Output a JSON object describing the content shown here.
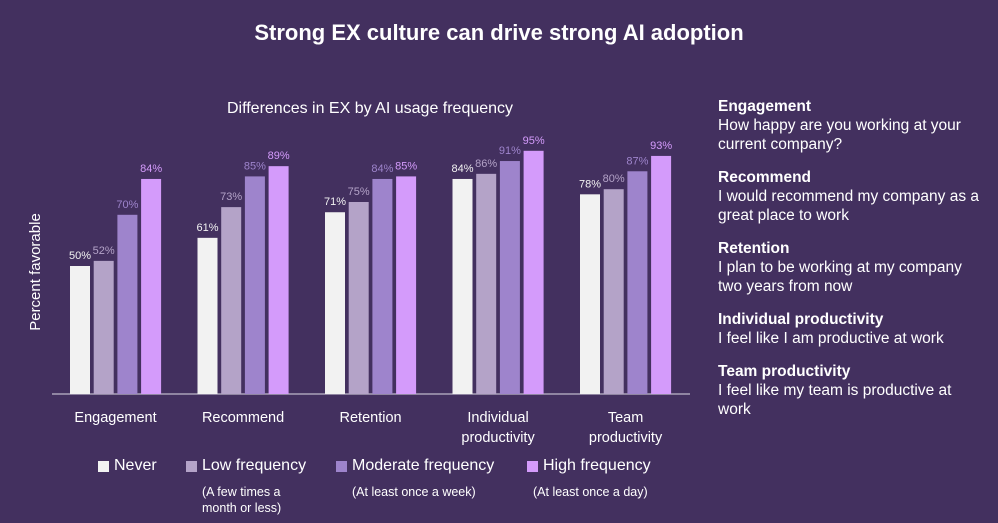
{
  "title": "Strong EX culture can drive strong AI adoption",
  "chart_data": {
    "type": "bar",
    "title": "Differences in EX by AI usage frequency",
    "ylabel": "Percent favorable",
    "xlabel": "",
    "ylim": [
      0,
      100
    ],
    "grid": false,
    "legend_position": "bottom",
    "categories": [
      "Engagement",
      "Recommend",
      "Retention",
      "Individual productivity",
      "Team productivity"
    ],
    "series": [
      {
        "name": "Never",
        "note": "",
        "color": "#f2f2f2",
        "values": [
          50,
          61,
          71,
          84,
          78
        ]
      },
      {
        "name": "Low frequency",
        "note": "(A few times a month or less)",
        "color": "#b4a3c8",
        "values": [
          52,
          73,
          75,
          86,
          80
        ]
      },
      {
        "name": "Moderate frequency",
        "note": "(At least once a week)",
        "color": "#9e84cc",
        "values": [
          70,
          85,
          84,
          91,
          87
        ]
      },
      {
        "name": "High frequency",
        "note": "(At least once a day)",
        "color": "#d49bfb",
        "values": [
          84,
          89,
          85,
          95,
          93
        ]
      }
    ]
  },
  "definitions": [
    {
      "term": "Engagement",
      "text": "How happy are you working at your current company?"
    },
    {
      "term": "Recommend",
      "text": "I would recommend my company as a great place to work"
    },
    {
      "term": "Retention",
      "text": "I plan to be working at my company two years from now"
    },
    {
      "term": "Individual productivity",
      "text": "I feel like I am productive at work"
    },
    {
      "term": "Team productivity",
      "text": "I feel like my team is productive at work"
    }
  ]
}
